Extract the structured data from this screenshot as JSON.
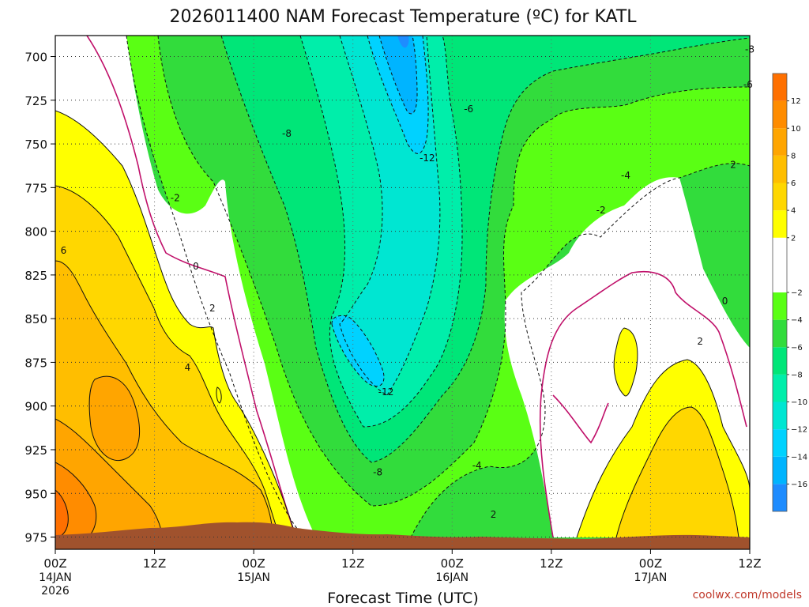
{
  "chart_data": {
    "type": "heatmap",
    "title": "2026011400 NAM Forecast Temperature (ºC) for KATL",
    "xlabel": "Forecast Time (UTC)",
    "ylabel": "",
    "credit": "coolwx.com/models",
    "y_axis": {
      "unit": "hPa",
      "ticks": [
        700,
        725,
        750,
        775,
        800,
        825,
        850,
        875,
        900,
        925,
        950,
        975
      ],
      "range": [
        688,
        982
      ]
    },
    "x_axis": {
      "unit": "forecast hour",
      "range": [
        0,
        84
      ],
      "ticks": [
        {
          "hour": 0,
          "top": "00Z",
          "bottom": "14JAN",
          "year": "2026"
        },
        {
          "hour": 12,
          "top": "12Z",
          "bottom": ""
        },
        {
          "hour": 24,
          "top": "00Z",
          "bottom": "15JAN"
        },
        {
          "hour": 36,
          "top": "12Z",
          "bottom": ""
        },
        {
          "hour": 48,
          "top": "00Z",
          "bottom": "16JAN"
        },
        {
          "hour": 60,
          "top": "12Z",
          "bottom": ""
        },
        {
          "hour": 72,
          "top": "00Z",
          "bottom": "17JAN"
        },
        {
          "hour": 84,
          "top": "12Z",
          "bottom": ""
        }
      ]
    },
    "colorbar": {
      "unit": "ºC",
      "bins": [
        {
          "min": -18,
          "max": -16,
          "color": "#1e8cff"
        },
        {
          "min": -16,
          "max": -14,
          "color": "#00b4ff"
        },
        {
          "min": -14,
          "max": -12,
          "color": "#00d2ff"
        },
        {
          "min": -12,
          "max": -10,
          "color": "#00e6d2"
        },
        {
          "min": -10,
          "max": -8,
          "color": "#00eeaa"
        },
        {
          "min": -8,
          "max": -6,
          "color": "#00e678"
        },
        {
          "min": -6,
          "max": -4,
          "color": "#32dc3c"
        },
        {
          "min": -4,
          "max": -2,
          "color": "#5aff14"
        },
        {
          "min": -2,
          "max": 2,
          "color": "#ffffff"
        },
        {
          "min": 2,
          "max": 4,
          "color": "#ffff00"
        },
        {
          "min": 4,
          "max": 6,
          "color": "#ffd700"
        },
        {
          "min": 6,
          "max": 8,
          "color": "#ffbe00"
        },
        {
          "min": 8,
          "max": 10,
          "color": "#ffa500"
        },
        {
          "min": 10,
          "max": 12,
          "color": "#ff8c00"
        },
        {
          "min": 12,
          "max": 14,
          "color": "#ff7000"
        }
      ],
      "labels": [
        12,
        10,
        8,
        6,
        4,
        2,
        -2,
        -4,
        -6,
        -8,
        -10,
        -12,
        -14,
        -16
      ]
    },
    "contour_labels": [
      {
        "text": "-8",
        "hour": 84,
        "p": 696
      },
      {
        "text": "-6",
        "hour": 83.8,
        "p": 716
      },
      {
        "text": "-6",
        "hour": 50,
        "p": 730
      },
      {
        "text": "-8",
        "hour": 28,
        "p": 744
      },
      {
        "text": "-12",
        "hour": 45,
        "p": 758
      },
      {
        "text": "2",
        "hour": 82,
        "p": 762
      },
      {
        "text": "-4",
        "hour": 69,
        "p": 768
      },
      {
        "text": "-2",
        "hour": 14.5,
        "p": 781
      },
      {
        "text": "-2",
        "hour": 66,
        "p": 788
      },
      {
        "text": "6",
        "hour": 1,
        "p": 811
      },
      {
        "text": "0",
        "hour": 17,
        "p": 820
      },
      {
        "text": "0",
        "hour": 81,
        "p": 840
      },
      {
        "text": "2",
        "hour": 19,
        "p": 844
      },
      {
        "text": "2",
        "hour": 78,
        "p": 863
      },
      {
        "text": "4",
        "hour": 16,
        "p": 878
      },
      {
        "text": "-12",
        "hour": 40,
        "p": 892
      },
      {
        "text": "-4",
        "hour": 51,
        "p": 934
      },
      {
        "text": "-8",
        "hour": 39,
        "p": 938
      },
      {
        "text": "2",
        "hour": 53,
        "p": 962
      }
    ]
  }
}
